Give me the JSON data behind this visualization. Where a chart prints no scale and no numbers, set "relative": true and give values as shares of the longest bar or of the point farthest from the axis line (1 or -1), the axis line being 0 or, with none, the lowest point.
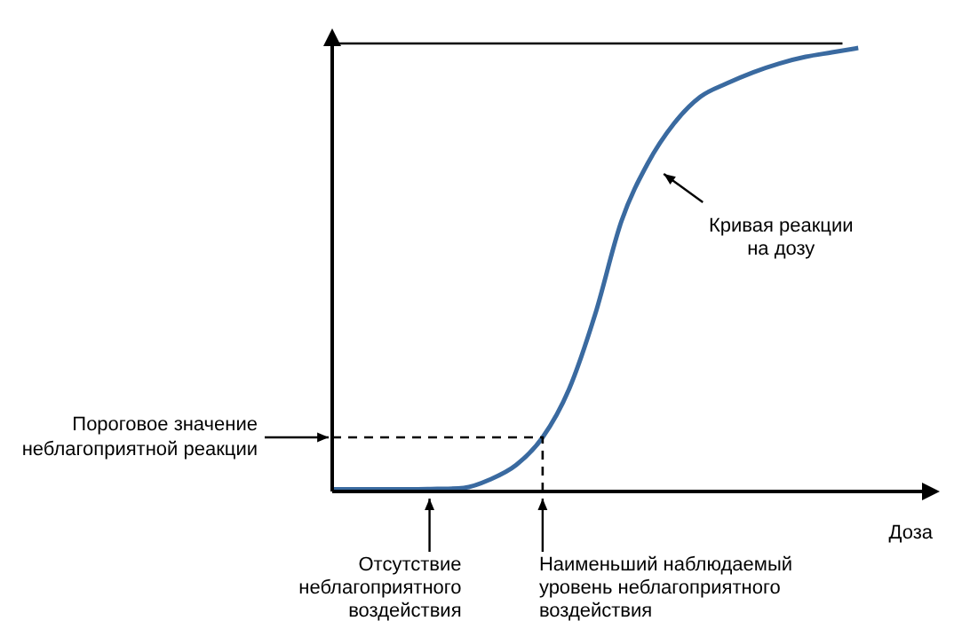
{
  "chart_data": {
    "type": "line",
    "relative": true,
    "xlabel": "Доза",
    "categories": [
      null,
      null,
      null,
      null,
      null,
      null,
      null,
      null,
      null,
      null,
      null,
      null,
      null,
      null,
      null,
      null,
      null,
      null,
      null,
      null,
      null
    ],
    "series": [
      {
        "color": "#3a6aa0",
        "values": [
          0.005,
          0.005,
          0.005,
          0.005,
          0.006,
          0.008,
          0.027,
          0.06,
          0.122,
          0.23,
          0.4,
          0.61,
          0.74,
          0.83,
          0.89,
          0.92,
          0.945,
          0.965,
          0.98,
          0.99,
          1.0
        ]
      }
    ],
    "ref_lines": [
      {
        "axis": "y",
        "value": 0.122,
        "label": "Пороговое значение неблагоприятной реакции",
        "line_style": "dashed",
        "color": "#000000"
      },
      {
        "axis": "y",
        "value": 1.01,
        "line_style": "solid",
        "color": "#000000"
      }
    ],
    "annotations": [
      "Кривая реакции на дозу",
      "Отсутствие неблагоприятного воздействия",
      "Наименьший наблюдаемый уровень неблагоприятного воздействия"
    ],
    "grid": false,
    "legend": false,
    "marker": "none",
    "line_style": "solid"
  }
}
